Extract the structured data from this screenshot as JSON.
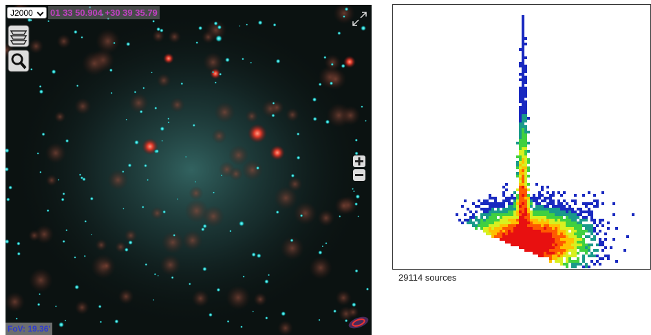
{
  "viewer": {
    "frame": "J2000",
    "coordinates": "01 33 50.904 +30 39 35.79",
    "fov": "FoV: 19.36'"
  },
  "plot": {
    "caption": "29114 sources"
  }
}
